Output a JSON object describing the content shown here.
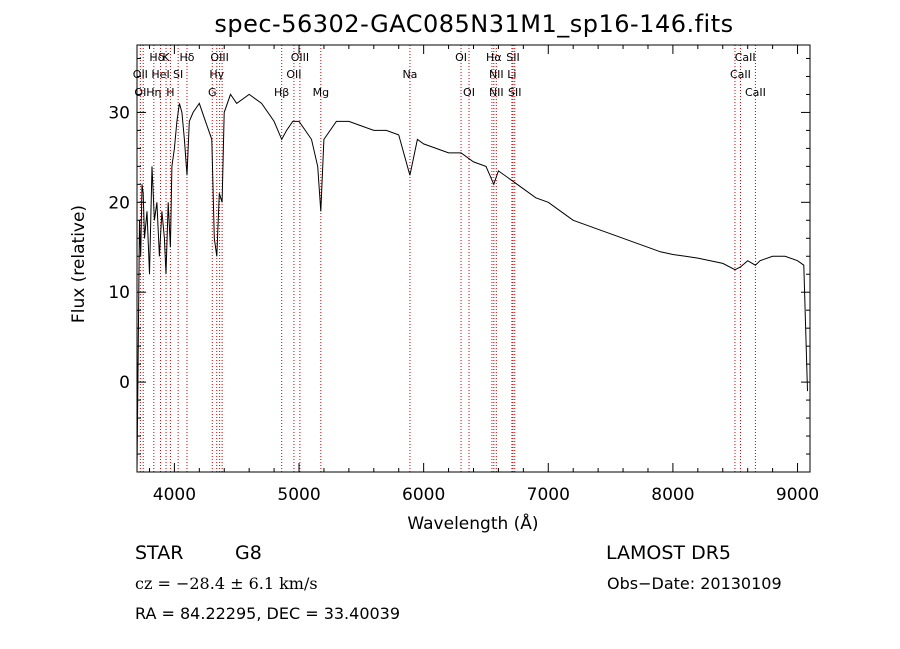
{
  "chart_data": {
    "type": "line",
    "title": "spec-56302-GAC085N31M1_sp16-146.fits",
    "xlabel": "Wavelength (Å)",
    "ylabel": "Flux (relative)",
    "xlim": [
      3700,
      9100
    ],
    "ylim": [
      -10,
      37.5
    ],
    "xticks": [
      4000,
      5000,
      6000,
      7000,
      8000,
      9000
    ],
    "yticks": [
      0,
      10,
      20,
      30
    ],
    "grid": false,
    "line_color": "#000000",
    "marker_color": "#cc0000",
    "series": [
      {
        "x": [
          3700,
          3720,
          3730,
          3740,
          3750,
          3760,
          3780,
          3800,
          3820,
          3840,
          3860,
          3880,
          3900,
          3920,
          3933,
          3950,
          3968,
          3980,
          4000,
          4020,
          4040,
          4060,
          4080,
          4101,
          4120,
          4150,
          4200,
          4250,
          4300,
          4320,
          4340,
          4360,
          4383,
          4400,
          4450,
          4500,
          4600,
          4700,
          4800,
          4861,
          4900,
          4950,
          5000,
          5050,
          5100,
          5150,
          5175,
          5200,
          5300,
          5400,
          5500,
          5600,
          5700,
          5800,
          5890,
          5950,
          6000,
          6100,
          6200,
          6300,
          6400,
          6500,
          6563,
          6600,
          6700,
          6800,
          6900,
          7000,
          7100,
          7200,
          7300,
          7400,
          7500,
          7600,
          7700,
          7800,
          7900,
          8000,
          8100,
          8200,
          8300,
          8400,
          8498,
          8542,
          8600,
          8662,
          8700,
          8800,
          8900,
          9000,
          9050,
          9080
        ],
        "y": [
          -10,
          18,
          14,
          22,
          21,
          16,
          19,
          12,
          24,
          18,
          20,
          14,
          19,
          16,
          12,
          20,
          15,
          24,
          26,
          29,
          31,
          30,
          27,
          23,
          29,
          30,
          31,
          29,
          27,
          16,
          14,
          21,
          20,
          30,
          32,
          31,
          32,
          31,
          29,
          27,
          28,
          29,
          29,
          28,
          27,
          24,
          19,
          27,
          29,
          29,
          28.5,
          28,
          28,
          27.5,
          23,
          27,
          26.5,
          26,
          25.5,
          25.5,
          24.5,
          24,
          22,
          23.5,
          22.5,
          21.5,
          20.5,
          20,
          19,
          18,
          17.5,
          17,
          16.5,
          16,
          15.5,
          15,
          14.5,
          14.2,
          14,
          13.8,
          13.5,
          13.2,
          12.5,
          12.8,
          13.5,
          13,
          13.5,
          14,
          14,
          13.5,
          13,
          -1
        ]
      }
    ],
    "line_labels": [
      {
        "label": "Hδ",
        "x": 3860,
        "row": 1
      },
      {
        "label": "K",
        "x": 3933,
        "row": 1
      },
      {
        "label": "Hδ",
        "x": 4101,
        "row": 1
      },
      {
        "label": "OIII",
        "x": 4363,
        "row": 1
      },
      {
        "label": "OIII",
        "x": 5007,
        "row": 1
      },
      {
        "label": "OI",
        "x": 6300,
        "row": 1
      },
      {
        "label": "Hα",
        "x": 6563,
        "row": 1
      },
      {
        "label": "SII",
        "x": 6717,
        "row": 1
      },
      {
        "label": "CaII",
        "x": 8580,
        "row": 1
      },
      {
        "label": "OII",
        "x": 3727,
        "row": 2
      },
      {
        "label": "HeI",
        "x": 3889,
        "row": 2
      },
      {
        "label": "SI",
        "x": 4030,
        "row": 2
      },
      {
        "label": "Hγ",
        "x": 4340,
        "row": 2
      },
      {
        "label": "OII",
        "x": 4959,
        "row": 2
      },
      {
        "label": "Na",
        "x": 5890,
        "row": 2
      },
      {
        "label": "NII",
        "x": 6583,
        "row": 2
      },
      {
        "label": "Li",
        "x": 6708,
        "row": 2
      },
      {
        "label": "CaII",
        "x": 8542,
        "row": 2
      },
      {
        "label": "OI",
        "x": 3727,
        "row": 3
      },
      {
        "label": "Hη",
        "x": 3835,
        "row": 3
      },
      {
        "label": "H",
        "x": 3968,
        "row": 3
      },
      {
        "label": "G",
        "x": 4304,
        "row": 3
      },
      {
        "label": "Hβ",
        "x": 4861,
        "row": 3
      },
      {
        "label": "Mg",
        "x": 5175,
        "row": 3
      },
      {
        "label": "OI",
        "x": 6364,
        "row": 3
      },
      {
        "label": "NII",
        "x": 6583,
        "row": 3
      },
      {
        "label": "SII",
        "x": 6731,
        "row": 3
      },
      {
        "label": "CaII",
        "x": 8662,
        "row": 3
      }
    ],
    "marker_lines_x": [
      3727,
      3750,
      3835,
      3889,
      3933,
      3968,
      4030,
      4101,
      4304,
      4340,
      4363,
      4383,
      4861,
      4959,
      5007,
      5175,
      5890,
      6300,
      6364,
      6548,
      6563,
      6583,
      6708,
      6717,
      6731,
      8498,
      8542,
      8662
    ]
  },
  "info": {
    "class": "STAR",
    "subclass": "G8",
    "survey": "LAMOST DR5",
    "cz_text": "cz = −28.4 ± 6.1 km/s",
    "obs_date": "Obs−Date: 20130109",
    "coords": "RA =  84.22295, DEC =  33.40039"
  }
}
